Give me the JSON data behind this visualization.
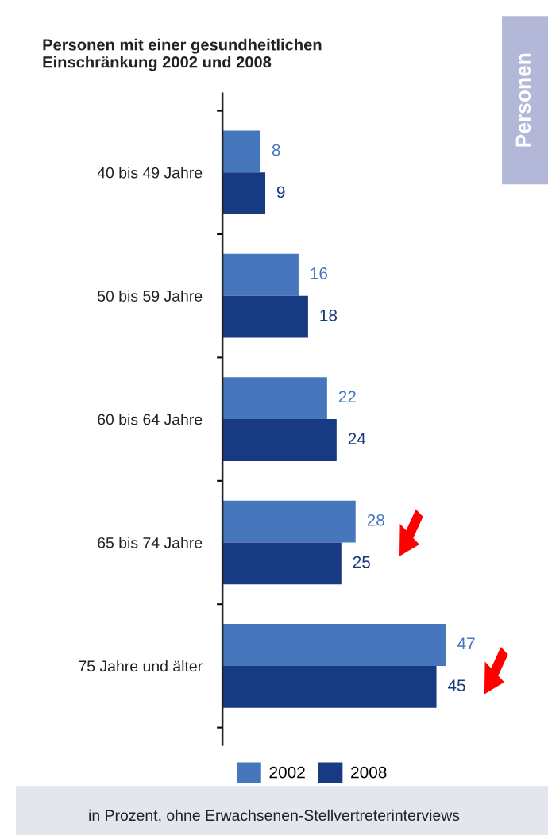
{
  "chart_data": {
    "type": "bar",
    "orientation": "horizontal",
    "title": "Personen mit einer gesundheitlichen\nEinschränkung 2002 und 2008",
    "categories": [
      "40 bis 49 Jahre",
      "50 bis 59 Jahre",
      "60 bis 64 Jahre",
      "65 bis 74 Jahre",
      "75 Jahre und älter"
    ],
    "series": [
      {
        "name": "2002",
        "color": "#4677bd",
        "values": [
          8,
          16,
          22,
          28,
          47
        ]
      },
      {
        "name": "2008",
        "color": "#173a82",
        "values": [
          9,
          18,
          24,
          25,
          45
        ]
      }
    ],
    "tick_labels": "y",
    "data_labels": true,
    "legend": "bottom",
    "grid": false,
    "annotations": [
      "Personen",
      "in Prozent, ohne Erwachsenen-Stellvertreterinterviews"
    ]
  }
}
